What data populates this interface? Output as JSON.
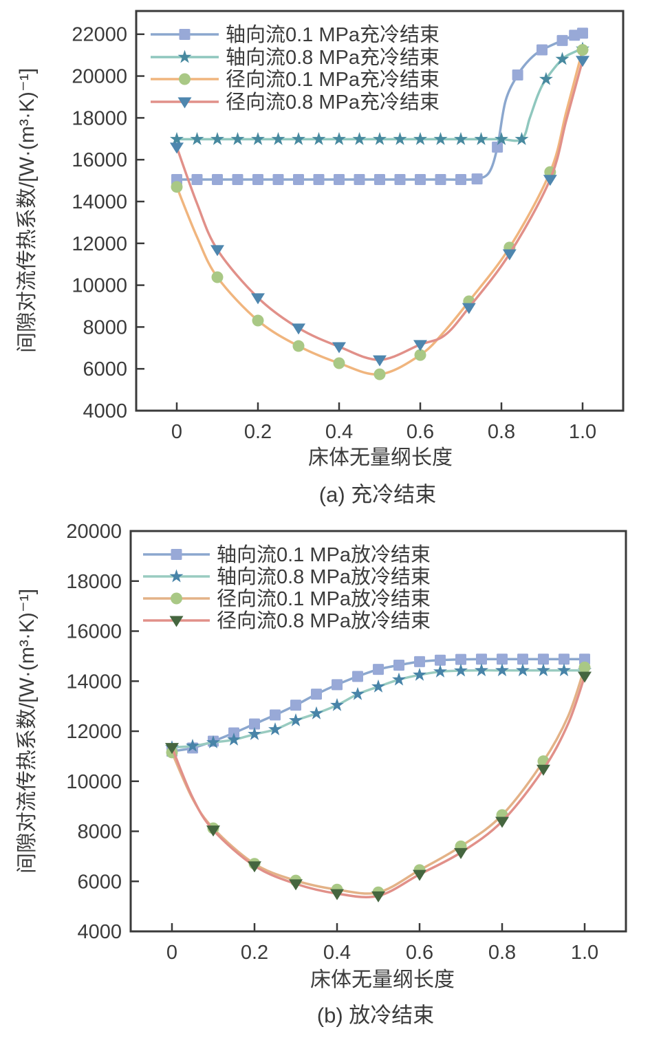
{
  "chart_data": [
    {
      "type": "line",
      "panel": "a",
      "title": "(a) 充冷结束",
      "xlabel": "床体无量纲长度",
      "ylabel": "间隙对流传热系数/[W·(m³·K)⁻¹]",
      "xlim": [
        -0.1,
        1.1
      ],
      "ylim": [
        4000,
        23110
      ],
      "xticks": [
        0,
        0.2,
        0.4,
        0.6,
        0.8,
        1.0
      ],
      "xtick_labels": [
        "0",
        "0.2",
        "0.4",
        "0.6",
        "0.8",
        "1.0"
      ],
      "yticks": [
        4000,
        6000,
        8000,
        10000,
        12000,
        14000,
        16000,
        18000,
        20000,
        22000
      ],
      "grid": false,
      "legend_position": "upper-left",
      "axis_color": "#3a3a3a",
      "text_color": "#3b3b3b",
      "series": [
        {
          "name": "轴向流0.1 MPa充冷结束",
          "line_color": "#8BA7CE",
          "marker": "square",
          "marker_color": "#98A9D7",
          "x": [
            0,
            0.05,
            0.1,
            0.15,
            0.2,
            0.25,
            0.3,
            0.35,
            0.4,
            0.45,
            0.5,
            0.55,
            0.6,
            0.65,
            0.7,
            0.74,
            0.77,
            0.79,
            0.81,
            0.84,
            0.87,
            0.9,
            0.95,
            0.98,
            1.0
          ],
          "y": [
            15050,
            15050,
            15050,
            15050,
            15050,
            15050,
            15050,
            15050,
            15050,
            15050,
            15050,
            15050,
            15050,
            15050,
            15050,
            15080,
            15400,
            16600,
            18800,
            20050,
            20800,
            21250,
            21700,
            21950,
            22050
          ],
          "marker_x": [
            0,
            0.05,
            0.1,
            0.15,
            0.2,
            0.25,
            0.3,
            0.35,
            0.4,
            0.45,
            0.5,
            0.55,
            0.6,
            0.65,
            0.7,
            0.74,
            0.79,
            0.84,
            0.9,
            0.95,
            0.98,
            1.0
          ],
          "marker_y": [
            15050,
            15050,
            15050,
            15050,
            15050,
            15050,
            15050,
            15050,
            15050,
            15050,
            15050,
            15050,
            15050,
            15050,
            15050,
            15080,
            16600,
            20050,
            21250,
            21700,
            21950,
            22050
          ]
        },
        {
          "name": "轴向流0.8 MPa充冷结束",
          "line_color": "#8FC7BE",
          "marker": "star",
          "marker_color": "#47899F",
          "x": [
            0,
            0.05,
            0.1,
            0.15,
            0.2,
            0.25,
            0.3,
            0.35,
            0.4,
            0.45,
            0.5,
            0.55,
            0.6,
            0.65,
            0.7,
            0.75,
            0.8,
            0.85,
            0.87,
            0.89,
            0.91,
            0.95,
            0.98,
            1.0
          ],
          "y": [
            16980,
            16980,
            16980,
            16980,
            16980,
            16980,
            16980,
            16980,
            16980,
            16980,
            16980,
            16980,
            16980,
            16980,
            16980,
            16980,
            16980,
            16980,
            18000,
            19100,
            19850,
            20810,
            21150,
            21300
          ],
          "marker_x": [
            0,
            0.05,
            0.1,
            0.15,
            0.2,
            0.25,
            0.3,
            0.35,
            0.4,
            0.45,
            0.5,
            0.55,
            0.6,
            0.65,
            0.7,
            0.75,
            0.8,
            0.85,
            0.91,
            0.95,
            1.0
          ],
          "marker_y": [
            16980,
            16980,
            16980,
            16980,
            16980,
            16980,
            16980,
            16980,
            16980,
            16980,
            16980,
            16980,
            16980,
            16980,
            16980,
            16980,
            16980,
            16980,
            19850,
            20810,
            21300
          ]
        },
        {
          "name": "径向流0.1 MPa充冷结束",
          "line_color": "#F0B57E",
          "marker": "circle",
          "marker_color": "#A9C885",
          "x": [
            0,
            0.05,
            0.1,
            0.2,
            0.3,
            0.4,
            0.5,
            0.6,
            0.66,
            0.72,
            0.82,
            0.92,
            0.96,
            1.0
          ],
          "y": [
            14700,
            12300,
            10380,
            8310,
            7090,
            6270,
            5740,
            6660,
            7800,
            9230,
            11800,
            15410,
            18300,
            21250
          ],
          "marker_x": [
            0,
            0.1,
            0.2,
            0.3,
            0.4,
            0.5,
            0.6,
            0.72,
            0.82,
            0.92,
            1.0
          ],
          "marker_y": [
            14700,
            10380,
            8310,
            7090,
            6270,
            5740,
            6660,
            9230,
            11800,
            15410,
            21250
          ]
        },
        {
          "name": "径向流0.8 MPa充冷结束",
          "line_color": "#E19089",
          "marker": "triangle-down",
          "marker_color": "#4E86AE",
          "x": [
            0,
            0.05,
            0.1,
            0.2,
            0.3,
            0.4,
            0.5,
            0.6,
            0.66,
            0.72,
            0.82,
            0.92,
            0.96,
            1.0
          ],
          "y": [
            16600,
            13900,
            11700,
            9400,
            7950,
            7060,
            6430,
            7160,
            7600,
            8930,
            11500,
            15060,
            17900,
            20750
          ],
          "marker_x": [
            0,
            0.1,
            0.2,
            0.3,
            0.4,
            0.5,
            0.6,
            0.72,
            0.82,
            0.92,
            1.0
          ],
          "marker_y": [
            16600,
            11700,
            9400,
            7950,
            7060,
            6430,
            7160,
            8930,
            11500,
            15060,
            20750
          ]
        }
      ]
    },
    {
      "type": "line",
      "panel": "b",
      "title": "(b) 放冷结束",
      "xlabel": "床体无量纲长度",
      "ylabel": "间隙对流传热系数/[W·(m³·K)⁻¹]",
      "xlim": [
        -0.1,
        1.1
      ],
      "ylim": [
        4000,
        20000
      ],
      "xticks": [
        0,
        0.2,
        0.4,
        0.6,
        0.8,
        1.0
      ],
      "xtick_labels": [
        "0",
        "0.2",
        "0.4",
        "0.6",
        "0.8",
        "1.0"
      ],
      "yticks": [
        4000,
        6000,
        8000,
        10000,
        12000,
        14000,
        16000,
        18000,
        20000
      ],
      "grid": false,
      "legend_position": "upper-left",
      "axis_color": "#3a3a3a",
      "text_color": "#3b3b3b",
      "series": [
        {
          "name": "轴向流0.1 MPa放冷结束",
          "line_color": "#8BA7CE",
          "marker": "square",
          "marker_color": "#98A9D7",
          "x": [
            0,
            0.05,
            0.1,
            0.15,
            0.2,
            0.25,
            0.3,
            0.35,
            0.4,
            0.45,
            0.5,
            0.55,
            0.6,
            0.65,
            0.7,
            0.75,
            0.8,
            0.85,
            0.9,
            0.95,
            1.0
          ],
          "y": [
            11200,
            11330,
            11600,
            11930,
            12290,
            12650,
            13040,
            13480,
            13860,
            14190,
            14470,
            14640,
            14780,
            14840,
            14870,
            14880,
            14880,
            14880,
            14880,
            14880,
            14880
          ],
          "marker_x": [
            0,
            0.05,
            0.1,
            0.15,
            0.2,
            0.25,
            0.3,
            0.35,
            0.4,
            0.45,
            0.5,
            0.55,
            0.6,
            0.65,
            0.7,
            0.75,
            0.8,
            0.85,
            0.9,
            0.95,
            1.0
          ],
          "marker_y": [
            11200,
            11330,
            11600,
            11930,
            12290,
            12650,
            13040,
            13480,
            13860,
            14190,
            14470,
            14640,
            14780,
            14840,
            14870,
            14880,
            14880,
            14880,
            14880,
            14880,
            14880
          ]
        },
        {
          "name": "轴向流0.8 MPa放冷结束",
          "line_color": "#99CBC0",
          "marker": "star",
          "marker_color": "#4884A8",
          "x": [
            0,
            0.05,
            0.1,
            0.15,
            0.2,
            0.25,
            0.3,
            0.35,
            0.4,
            0.45,
            0.5,
            0.55,
            0.6,
            0.65,
            0.7,
            0.75,
            0.8,
            0.85,
            0.9,
            0.95,
            1.0
          ],
          "y": [
            11350,
            11410,
            11550,
            11660,
            11880,
            12070,
            12430,
            12710,
            13040,
            13480,
            13780,
            14060,
            14250,
            14380,
            14420,
            14430,
            14430,
            14430,
            14430,
            14430,
            14430
          ],
          "marker_x": [
            0,
            0.05,
            0.1,
            0.15,
            0.2,
            0.25,
            0.3,
            0.35,
            0.4,
            0.45,
            0.5,
            0.55,
            0.6,
            0.65,
            0.7,
            0.75,
            0.8,
            0.85,
            0.9,
            0.95,
            1.0
          ],
          "marker_y": [
            11350,
            11410,
            11550,
            11660,
            11880,
            12070,
            12430,
            12710,
            13040,
            13480,
            13780,
            14060,
            14250,
            14380,
            14420,
            14430,
            14430,
            14430,
            14430,
            14430,
            14430
          ]
        },
        {
          "name": "径向流0.1 MPa放冷结束",
          "line_color": "#E3B287",
          "marker": "circle",
          "marker_color": "#A9C885",
          "x": [
            0,
            0.05,
            0.1,
            0.2,
            0.3,
            0.4,
            0.5,
            0.6,
            0.7,
            0.8,
            0.9,
            0.96,
            1.0
          ],
          "y": [
            11150,
            9300,
            8120,
            6700,
            6030,
            5670,
            5560,
            6450,
            7400,
            8650,
            10800,
            12600,
            14550
          ],
          "marker_x": [
            0,
            0.1,
            0.2,
            0.3,
            0.4,
            0.5,
            0.6,
            0.7,
            0.8,
            0.9,
            1.0
          ],
          "marker_y": [
            11150,
            8120,
            6700,
            6030,
            5670,
            5560,
            6450,
            7400,
            8650,
            10800,
            14550
          ]
        },
        {
          "name": "径向流0.8 MPa放冷结束",
          "line_color": "#E19089",
          "marker": "triangle-down",
          "marker_color": "#45663F",
          "x": [
            0,
            0.05,
            0.1,
            0.2,
            0.3,
            0.4,
            0.5,
            0.6,
            0.7,
            0.8,
            0.9,
            0.96,
            1.0
          ],
          "y": [
            11350,
            9350,
            8050,
            6620,
            5900,
            5510,
            5420,
            6280,
            7150,
            8400,
            10480,
            12300,
            14200
          ],
          "marker_x": [
            0,
            0.1,
            0.2,
            0.3,
            0.4,
            0.5,
            0.6,
            0.7,
            0.8,
            0.9,
            1.0
          ],
          "marker_y": [
            11350,
            8050,
            6620,
            5900,
            5510,
            5420,
            6280,
            7150,
            8400,
            10480,
            14200
          ]
        }
      ]
    }
  ]
}
